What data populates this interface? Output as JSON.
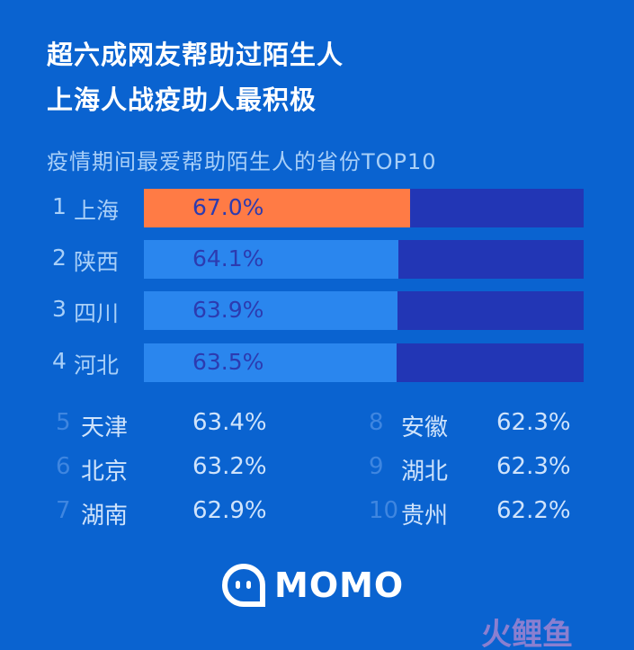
{
  "title_lines": [
    "超六成网友帮助过陌生人",
    "上海人战疫助人最积极"
  ],
  "chart_data": {
    "type": "bar",
    "title": "疫情期间最爱帮助陌生人的省份TOP10",
    "categories": [
      "上海",
      "陕西",
      "四川",
      "河北",
      "天津",
      "北京",
      "湖南",
      "安徽",
      "湖北",
      "贵州"
    ],
    "ranks": [
      "1",
      "2",
      "3",
      "4",
      "5",
      "6",
      "7",
      "8",
      "9",
      "10"
    ],
    "values": [
      67.0,
      64.1,
      63.9,
      63.5,
      63.4,
      63.2,
      62.9,
      62.3,
      62.3,
      62.2
    ],
    "value_labels": [
      "67.0%",
      "64.1%",
      "63.9%",
      "63.5%",
      "63.4%",
      "63.2%",
      "62.9%",
      "62.3%",
      "62.3%",
      "62.2%"
    ],
    "highlight_color": "#ff7b45",
    "bar_color": "#2a86ee",
    "track_color": "#2236b5"
  },
  "brand": {
    "logo_text": "MOMO",
    "watermark": "火鲤鱼"
  }
}
